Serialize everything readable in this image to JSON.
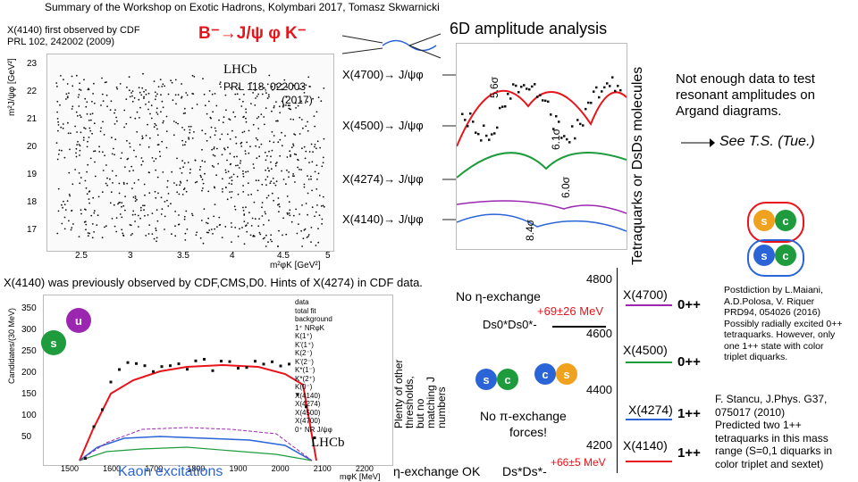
{
  "header": {
    "title": "Summary of the Workshop on Exotic Hadrons, Kolymbari 2017, Tomasz Skwarnicki"
  },
  "cdf_ref": {
    "line1": "X(4140) first observed by CDF",
    "line2": "PRL 102, 242002 (2009)"
  },
  "decay_title": "B⁻→J/ψ φ K⁻",
  "lhcb_label": "LHCb",
  "lhcb_ref": {
    "line1": "PRL 118, 022003",
    "line2": "(2017)"
  },
  "amplitude_title": "6D amplitude analysis",
  "states": [
    {
      "label": "X(4700)→ J/ψφ",
      "sig": "5.6σ"
    },
    {
      "label": "X(4500)→ J/ψφ",
      "sig": "6.1σ"
    },
    {
      "label": "X(4274)→ J/ψφ",
      "sig": "6.0σ"
    },
    {
      "label": "X(4140)→ J/ψφ",
      "sig": "8.4σ"
    }
  ],
  "vertical_title": "Tetraquarks or DsDs molecules",
  "right_note": "Not enough data to test resonant amplitudes on Argand diagrams.",
  "see_ts": "See T.S. (Tue.)",
  "quarks_top": [
    "s",
    "c"
  ],
  "quarks_bottom": [
    "s",
    "c"
  ],
  "previous_obs": "X(4140) was previously observed by CDF,CMS,D0. Hints of X(4274) in CDF data.",
  "kaon_label": "Kaon excitations",
  "lhcb_bottom": "LHCb",
  "plenty_text": [
    "Plenty of other",
    "thresholds,",
    "but no",
    "matching J",
    "numbers"
  ],
  "no_eta": "No η-exchange",
  "ds_pair_top": "Ds0*Ds0*-",
  "shift_top": "+69±26 MeV",
  "no_pi": [
    "No π-exchange",
    "forces!"
  ],
  "eta_ok": "η-exchange OK",
  "ds_pair_bottom": "Ds*Ds*-",
  "shift_bottom": "+66±5 MeV",
  "mass_ticks": [
    "4800",
    "4600",
    "4400",
    "4200"
  ],
  "levels": [
    {
      "name": "X(4700)",
      "jpc": "0++"
    },
    {
      "name": "X(4500)",
      "jpc": "0++"
    },
    {
      "name": "X(4274)",
      "jpc": "1++"
    },
    {
      "name": "X(4140)",
      "jpc": "1++"
    }
  ],
  "maiani": [
    "Postdiction by L.Maiani,",
    "A.D.Polosa, V. Riquer",
    "PRD94, 054026 (2016)",
    "Possibly radially excited 0++",
    "tetraquarks. However, only",
    "one 1++ state with color",
    "triplet diquarks."
  ],
  "stancu": [
    "F. Stancu, J.Phys. G37,",
    "075017 (2010)",
    "Predicted two 1++",
    "tetraquarks in this mass",
    "range (S=0,1 diquarks in",
    "color triplet and sextet)"
  ],
  "dalitz_axes": {
    "yticks": [
      "23",
      "22",
      "21",
      "20",
      "19",
      "18",
      "17"
    ],
    "xticks": [
      "2.5",
      "3",
      "3.5",
      "4",
      "4.5",
      "5"
    ],
    "ylabel": "m²J/ψφ [GeV²]",
    "xlabel": "m²φK [GeV²]"
  },
  "kaon_axes": {
    "yticks": [
      "350",
      "300",
      "250",
      "200",
      "150",
      "100",
      "50"
    ],
    "xticks": [
      "1500",
      "1600",
      "1700",
      "1800",
      "1900",
      "2000",
      "2100",
      "2200"
    ],
    "ylabel": "Candidates/(30 MeV)",
    "xlabel": "mφK [MeV]"
  },
  "legend": [
    "data",
    "total fit",
    "background",
    "1⁺ NRφK",
    "K(1⁺)",
    "K'(1⁺)",
    "K(2⁻)",
    "K'(2⁻)",
    "K*(1⁻)",
    "K*(2⁺)",
    "K(0⁻)",
    "X(4140)",
    "X(4274)",
    "X(4500)",
    "X(4700)",
    "0⁺ NR J/ψφ"
  ],
  "colors": {
    "red": "#e8141b",
    "green": "#1e9b3c",
    "purple": "#9b27b0",
    "blue": "#2a64d6",
    "orange": "#f0a21e"
  }
}
